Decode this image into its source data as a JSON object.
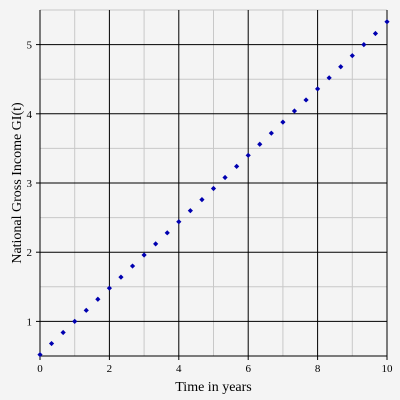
{
  "chart_data": {
    "type": "scatter",
    "title": "",
    "xlabel": "Time in years",
    "ylabel": "National Gross Income GI(t)",
    "xlim": [
      0,
      10
    ],
    "ylim": [
      0.5,
      5.5
    ],
    "x_ticks": [
      0,
      2,
      4,
      6,
      8,
      10
    ],
    "y_ticks": [
      1,
      2,
      3,
      4,
      5
    ],
    "grid": true,
    "colors": {
      "points": "#0000b0",
      "major_grid": "#000000",
      "minor_grid": "#c8c8c8",
      "background": "#f4f4f4"
    },
    "series": [
      {
        "x": [
          0,
          0.333,
          0.667,
          1,
          1.333,
          1.667,
          2,
          2.333,
          2.667,
          3,
          3.333,
          3.667,
          4,
          4.333,
          4.667,
          5,
          5.333,
          5.667,
          6,
          6.333,
          6.667,
          7,
          7.333,
          7.667,
          8,
          8.333,
          8.667,
          9,
          9.333,
          9.667,
          10
        ],
        "y": [
          0.52,
          0.68,
          0.84,
          1.0,
          1.16,
          1.32,
          1.48,
          1.64,
          1.8,
          1.96,
          2.12,
          2.28,
          2.44,
          2.6,
          2.76,
          2.92,
          3.08,
          3.24,
          3.4,
          3.56,
          3.72,
          3.88,
          4.04,
          4.2,
          4.36,
          4.52,
          4.68,
          4.84,
          5.0,
          5.16,
          5.33
        ]
      }
    ]
  }
}
